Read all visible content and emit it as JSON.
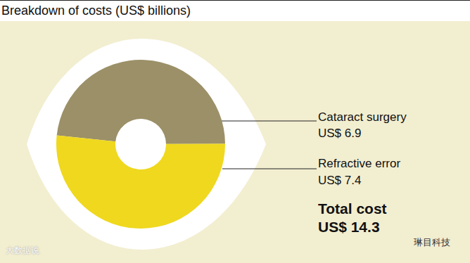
{
  "chart_data": {
    "type": "doughnut",
    "title": "Breakdown of costs (US$ billions)",
    "categories": [
      "Cataract surgery",
      "Refractive error"
    ],
    "values": [
      6.9,
      7.4
    ],
    "value_labels": [
      "US$ 6.9",
      "US$ 7.4"
    ],
    "colors": [
      "#9c9068",
      "#efd81e"
    ],
    "data_labels": true,
    "total": {
      "label": "Total cost",
      "value": 14.3,
      "value_label": "US$ 14.3"
    },
    "annotations": [
      "大数据说",
      "琳目科技"
    ]
  }
}
